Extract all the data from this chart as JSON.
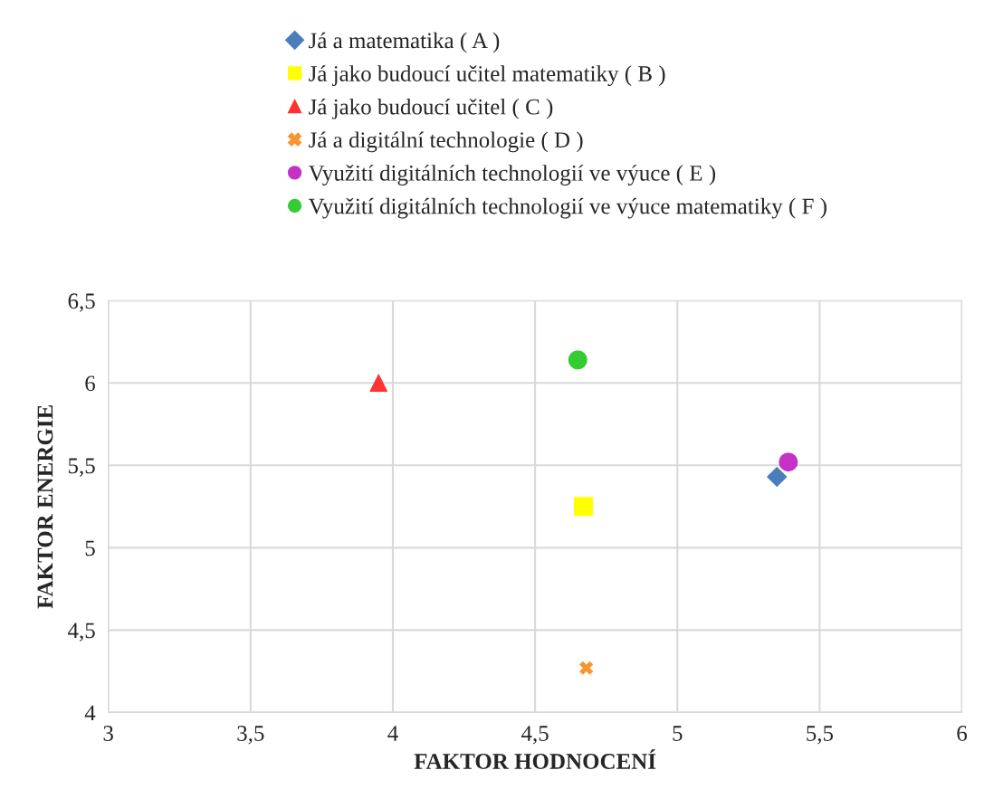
{
  "chart_data": {
    "type": "scatter",
    "xlabel": "FAKTOR HODNOCENÍ",
    "ylabel": "FAKTOR ENERGIE",
    "xlim": [
      3,
      6
    ],
    "xticks": [
      3,
      {
        "value": 3.5,
        "label": "3,5"
      },
      4,
      {
        "value": 4.5,
        "label": "4,5"
      },
      5,
      {
        "value": 5.5,
        "label": "5,5"
      },
      6
    ],
    "ylim": [
      4,
      6.5
    ],
    "yticks": [
      4,
      {
        "value": 4.5,
        "label": "4,5"
      },
      5,
      {
        "value": 5.5,
        "label": "5,5"
      },
      6,
      {
        "value": 6.5,
        "label": "6,5"
      }
    ],
    "grid": true,
    "legend": "top",
    "series": [
      {
        "name": "Já a matematika ( A )",
        "color": "#4a7ebb",
        "marker": "diamond",
        "x": [
          5.35
        ],
        "values": [
          5.43
        ]
      },
      {
        "name": "Já jako budoucí učitel matematiky ( B )",
        "color": "#ffff00",
        "marker": "square",
        "x": [
          4.67
        ],
        "values": [
          5.25
        ]
      },
      {
        "name": "Já jako budoucí učitel ( C )",
        "color": "#ff3333",
        "marker": "triangle",
        "x": [
          3.95
        ],
        "values": [
          6.0
        ]
      },
      {
        "name": "Já a digitální technologie ( D )",
        "color": "#f7962e",
        "marker": "cross",
        "x": [
          4.68
        ],
        "values": [
          4.27
        ]
      },
      {
        "name": "Využití digitálních technologií ve výuce ( E )",
        "color": "#c530c5",
        "marker": "circle",
        "x": [
          5.39
        ],
        "values": [
          5.52
        ]
      },
      {
        "name": "Využití digitálních technologií ve výuce matematiky ( F )",
        "color": "#33cc33",
        "marker": "circle",
        "x": [
          4.65
        ],
        "values": [
          6.14
        ]
      }
    ]
  }
}
